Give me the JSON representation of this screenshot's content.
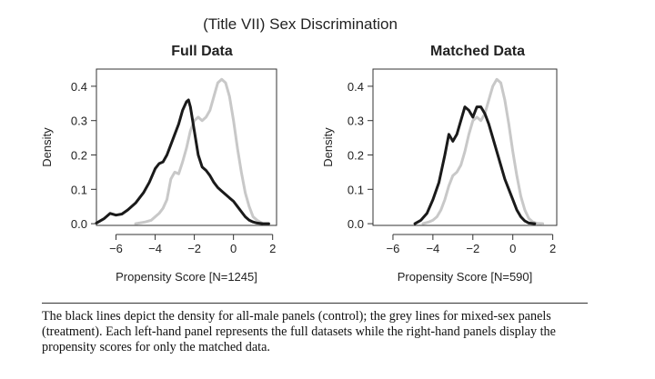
{
  "figure": {
    "title": "(Title VII) Sex Discrimination",
    "caption": "The black lines depict the density for all-male panels (control); the grey lines for mixed-sex panels (treatment). Each left-hand panel represents the full datasets while the right-hand panels display the propensity scores for only the matched data."
  },
  "colors": {
    "control": "#1a1a1a",
    "treatment": "#c8c8c8",
    "axis": "#333333"
  },
  "chart_data": [
    {
      "type": "line",
      "title": "Full Data",
      "xlabel": "Propensity Score [N=1245]",
      "ylabel": "Density",
      "xlim": [
        -7.0,
        2.2
      ],
      "ylim": [
        -0.005,
        0.45
      ],
      "xticks": [
        -6,
        -4,
        -2,
        0,
        2
      ],
      "xtick_labels": [
        "−6",
        "−4",
        "−2",
        "0",
        "2"
      ],
      "yticks": [
        0.0,
        0.1,
        0.2,
        0.3,
        0.4
      ],
      "ytick_labels": [
        "0.0",
        "0.1",
        "0.2",
        "0.3",
        "0.4"
      ],
      "series": [
        {
          "role": "control",
          "x": [
            -7.0,
            -6.6,
            -6.3,
            -6.0,
            -5.7,
            -5.4,
            -5.0,
            -4.6,
            -4.3,
            -4.0,
            -3.8,
            -3.6,
            -3.4,
            -3.2,
            -3.0,
            -2.8,
            -2.6,
            -2.4,
            -2.3,
            -2.2,
            -2.0,
            -1.8,
            -1.6,
            -1.4,
            -1.2,
            -1.0,
            -0.8,
            -0.6,
            -0.4,
            -0.2,
            0.0,
            0.2,
            0.4,
            0.6,
            0.8,
            1.0,
            1.2,
            1.5,
            1.8
          ],
          "y": [
            0.002,
            0.015,
            0.03,
            0.025,
            0.028,
            0.04,
            0.06,
            0.09,
            0.12,
            0.16,
            0.175,
            0.18,
            0.2,
            0.23,
            0.26,
            0.29,
            0.33,
            0.355,
            0.36,
            0.34,
            0.27,
            0.2,
            0.165,
            0.155,
            0.14,
            0.12,
            0.105,
            0.095,
            0.085,
            0.075,
            0.065,
            0.05,
            0.035,
            0.02,
            0.01,
            0.005,
            0.002,
            0.0,
            0.0
          ]
        },
        {
          "role": "treatment",
          "x": [
            -5.0,
            -4.5,
            -4.2,
            -4.0,
            -3.8,
            -3.6,
            -3.4,
            -3.2,
            -3.0,
            -2.8,
            -2.6,
            -2.4,
            -2.2,
            -2.0,
            -1.8,
            -1.6,
            -1.4,
            -1.2,
            -1.0,
            -0.8,
            -0.6,
            -0.4,
            -0.2,
            0.0,
            0.2,
            0.4,
            0.6,
            0.8,
            1.0,
            1.2,
            1.5,
            1.8
          ],
          "y": [
            0.0,
            0.005,
            0.01,
            0.02,
            0.03,
            0.045,
            0.07,
            0.13,
            0.15,
            0.145,
            0.18,
            0.22,
            0.27,
            0.3,
            0.31,
            0.3,
            0.31,
            0.33,
            0.37,
            0.41,
            0.42,
            0.41,
            0.37,
            0.3,
            0.22,
            0.15,
            0.09,
            0.05,
            0.02,
            0.01,
            0.0,
            0.0
          ]
        }
      ]
    },
    {
      "type": "line",
      "title": "Matched Data",
      "xlabel": "Propensity Score [N=590]",
      "ylabel": "Density",
      "xlim": [
        -7.0,
        2.2
      ],
      "ylim": [
        -0.005,
        0.45
      ],
      "xticks": [
        -6,
        -4,
        -2,
        0,
        2
      ],
      "xtick_labels": [
        "−6",
        "−4",
        "−2",
        "0",
        "2"
      ],
      "yticks": [
        0.0,
        0.1,
        0.2,
        0.3,
        0.4
      ],
      "ytick_labels": [
        "0.0",
        "0.1",
        "0.2",
        "0.3",
        "0.4"
      ],
      "series": [
        {
          "role": "control",
          "x": [
            -4.9,
            -4.6,
            -4.3,
            -4.0,
            -3.7,
            -3.4,
            -3.2,
            -3.0,
            -2.8,
            -2.6,
            -2.4,
            -2.2,
            -2.0,
            -1.8,
            -1.6,
            -1.4,
            -1.2,
            -1.0,
            -0.8,
            -0.6,
            -0.4,
            -0.2,
            0.0,
            0.2,
            0.4,
            0.6,
            0.8,
            1.1
          ],
          "y": [
            0.0,
            0.01,
            0.03,
            0.07,
            0.12,
            0.2,
            0.26,
            0.24,
            0.26,
            0.3,
            0.34,
            0.33,
            0.31,
            0.34,
            0.34,
            0.32,
            0.29,
            0.25,
            0.21,
            0.17,
            0.13,
            0.1,
            0.07,
            0.04,
            0.02,
            0.008,
            0.002,
            0.0
          ]
        },
        {
          "role": "treatment",
          "x": [
            -4.5,
            -4.2,
            -4.0,
            -3.8,
            -3.6,
            -3.4,
            -3.2,
            -3.0,
            -2.8,
            -2.6,
            -2.4,
            -2.2,
            -2.0,
            -1.8,
            -1.6,
            -1.4,
            -1.2,
            -1.0,
            -0.8,
            -0.6,
            -0.4,
            -0.2,
            0.0,
            0.2,
            0.4,
            0.6,
            0.8,
            1.0,
            1.2,
            1.5
          ],
          "y": [
            0.0,
            0.005,
            0.01,
            0.02,
            0.04,
            0.07,
            0.11,
            0.14,
            0.15,
            0.17,
            0.21,
            0.26,
            0.3,
            0.31,
            0.3,
            0.32,
            0.36,
            0.4,
            0.42,
            0.41,
            0.36,
            0.29,
            0.21,
            0.14,
            0.08,
            0.04,
            0.015,
            0.005,
            0.001,
            0.0
          ]
        }
      ]
    }
  ]
}
